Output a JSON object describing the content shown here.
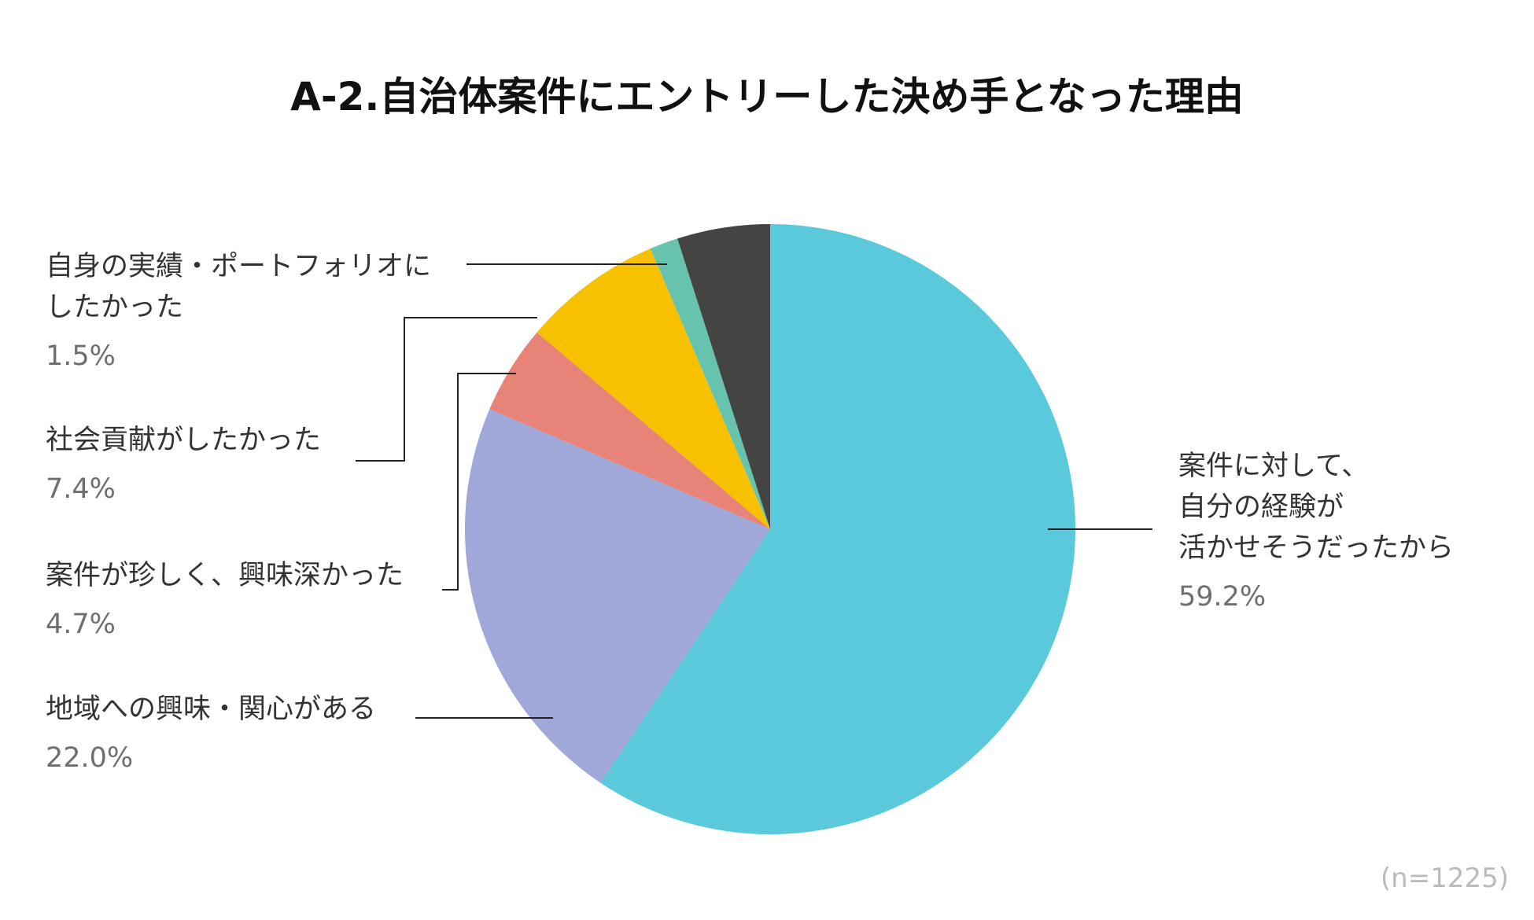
{
  "chart_data": {
    "type": "pie",
    "title": "A-2.自治体案件にエントリーした決め手となった理由",
    "note": "(n=1225)",
    "start": "12 o'clock",
    "direction": "clockwise",
    "slices": [
      {
        "label_lines": [
          "案件に対して、",
          "自分の経験が",
          "活かせそうだったから"
        ],
        "value": 59.2,
        "value_label": "59.2%",
        "color": "#5bc9dc"
      },
      {
        "label_lines": [
          "地域への興味・関心がある"
        ],
        "value": 22.0,
        "value_label": "22.0%",
        "color": "#9fa8d8"
      },
      {
        "label_lines": [
          "案件が珍しく、興味深かった"
        ],
        "value": 4.7,
        "value_label": "4.7%",
        "color": "#e88377"
      },
      {
        "label_lines": [
          "社会貢献がしたかった"
        ],
        "value": 7.4,
        "value_label": "7.4%",
        "color": "#f7c100"
      },
      {
        "label_lines": [
          "自身の実績・ポートフォリオに",
          "したかった"
        ],
        "value": 1.5,
        "value_label": "1.5%",
        "color": "#67c3ad"
      },
      {
        "label_lines": [],
        "value": 4.9,
        "value_label": "",
        "color": "#444444"
      }
    ]
  }
}
